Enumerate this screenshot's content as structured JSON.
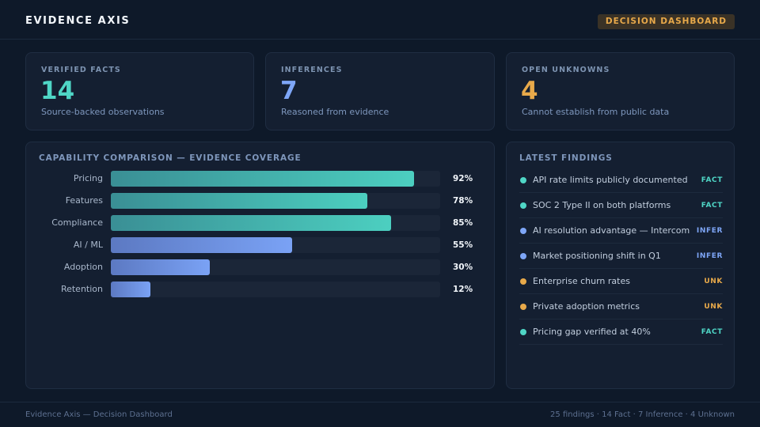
{
  "header": {
    "title": "EVIDENCE AXIS",
    "badge": "DECISION DASHBOARD"
  },
  "colors": {
    "fact": "#4fd6c6",
    "inference": "#7ea6f7",
    "unknown": "#e8a94a"
  },
  "stats": [
    {
      "label": "VERIFIED FACTS",
      "value": "14",
      "sub": "Source-backed observations",
      "color": "#4fd6c6"
    },
    {
      "label": "INFERENCES",
      "value": "7",
      "sub": "Reasoned from evidence",
      "color": "#7ea6f7"
    },
    {
      "label": "OPEN UNKNOWNS",
      "value": "4",
      "sub": "Cannot establish from public data",
      "color": "#e8a94a"
    }
  ],
  "chart_data": {
    "type": "bar",
    "title": "CAPABILITY COMPARISON — EVIDENCE COVERAGE",
    "orientation": "horizontal",
    "categories": [
      "Pricing",
      "Features",
      "Compliance",
      "AI / ML",
      "Adoption",
      "Retention"
    ],
    "values": [
      92,
      78,
      85,
      55,
      30,
      12
    ],
    "value_labels": [
      "92%",
      "78%",
      "85%",
      "55%",
      "30%",
      "12%"
    ],
    "bar_colors": [
      "teal",
      "teal",
      "teal",
      "blue",
      "blue",
      "blue"
    ],
    "xlim": [
      0,
      100
    ],
    "grid": false
  },
  "findings": {
    "title": "LATEST FINDINGS",
    "items": [
      {
        "text": "API rate limits publicly documented",
        "tag": "FACT",
        "kind": "fact"
      },
      {
        "text": "SOC 2 Type II on both platforms",
        "tag": "FACT",
        "kind": "fact"
      },
      {
        "text": "AI resolution advantage — Intercom",
        "tag": "INFER",
        "kind": "inference"
      },
      {
        "text": "Market positioning shift in Q1",
        "tag": "INFER",
        "kind": "inference"
      },
      {
        "text": "Enterprise churn rates",
        "tag": "UNK",
        "kind": "unknown"
      },
      {
        "text": "Private adoption metrics",
        "tag": "UNK",
        "kind": "unknown"
      },
      {
        "text": "Pricing gap verified at 40%",
        "tag": "FACT",
        "kind": "fact"
      }
    ]
  },
  "footer": {
    "left": "Evidence Axis — Decision Dashboard",
    "right": "25 findings · 14 Fact · 7 Inference · 4 Unknown"
  }
}
